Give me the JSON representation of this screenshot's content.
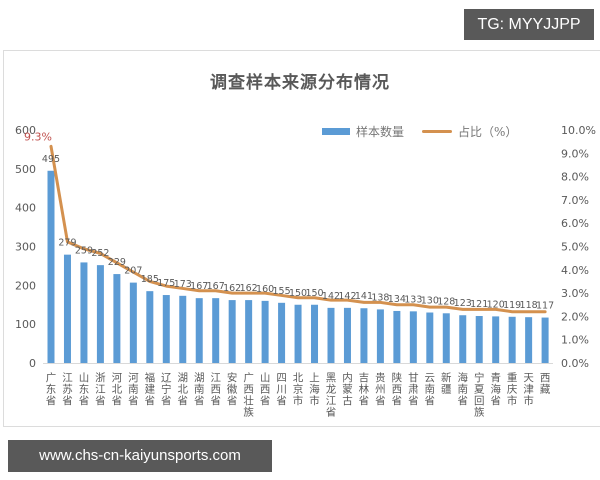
{
  "watermarks": {
    "top_right": "TG: MYYJJPP",
    "bottom_left": "www.chs-cn-kaiyunsports.com"
  },
  "legend": {
    "bar_label": "样本数量",
    "line_label": "占比（%）"
  },
  "colors": {
    "bar": "#5b9bd5",
    "line": "#d4914f",
    "highlight_label": "#c0504d",
    "axis_text": "#595959"
  },
  "chart_data": {
    "type": "bar+line",
    "title": "调查样本来源分布情况",
    "xlabel": "",
    "ylabel": "",
    "y2label": "",
    "ylim": [
      0,
      600
    ],
    "y_ticks": [
      0,
      100,
      200,
      300,
      400,
      500,
      600
    ],
    "y2lim": [
      0,
      10
    ],
    "y2_ticks": [
      "0.0%",
      "1.0%",
      "2.0%",
      "3.0%",
      "4.0%",
      "5.0%",
      "6.0%",
      "7.0%",
      "8.0%",
      "9.0%",
      "10.0%"
    ],
    "grid": false,
    "legend_position": "top-right",
    "categories": [
      "广东省",
      "江苏省",
      "山东省",
      "浙江省",
      "河北省",
      "河南省",
      "福建省",
      "辽宁省",
      "湖北省",
      "湖南省",
      "江西省",
      "安徽省",
      "广西壮族",
      "山西省",
      "四川省",
      "北京市",
      "上海市",
      "黑龙江省",
      "内蒙古",
      "吉林省",
      "贵州省",
      "陕西省",
      "甘肃省",
      "云南省",
      "新疆",
      "海南省",
      "宁夏回族",
      "青海省",
      "重庆市",
      "天津市",
      "西藏"
    ],
    "series": [
      {
        "name": "样本数量",
        "type": "bar",
        "axis": "left",
        "values": [
          495,
          279,
          259,
          252,
          229,
          207,
          185,
          175,
          173,
          167,
          167,
          162,
          162,
          160,
          155,
          150,
          150,
          142,
          142,
          141,
          138,
          134,
          133,
          130,
          128,
          123,
          121,
          120,
          119,
          118,
          117
        ]
      },
      {
        "name": "占比（%）",
        "type": "line",
        "axis": "right",
        "values": [
          9.3,
          5.2,
          4.9,
          4.7,
          4.3,
          3.9,
          3.5,
          3.3,
          3.2,
          3.1,
          3.1,
          3.0,
          3.0,
          3.0,
          2.9,
          2.8,
          2.8,
          2.7,
          2.7,
          2.6,
          2.6,
          2.5,
          2.5,
          2.4,
          2.4,
          2.3,
          2.3,
          2.3,
          2.2,
          2.2,
          2.2
        ]
      }
    ],
    "annotations": [
      {
        "category": "广东省",
        "text": "9.3%"
      }
    ]
  }
}
